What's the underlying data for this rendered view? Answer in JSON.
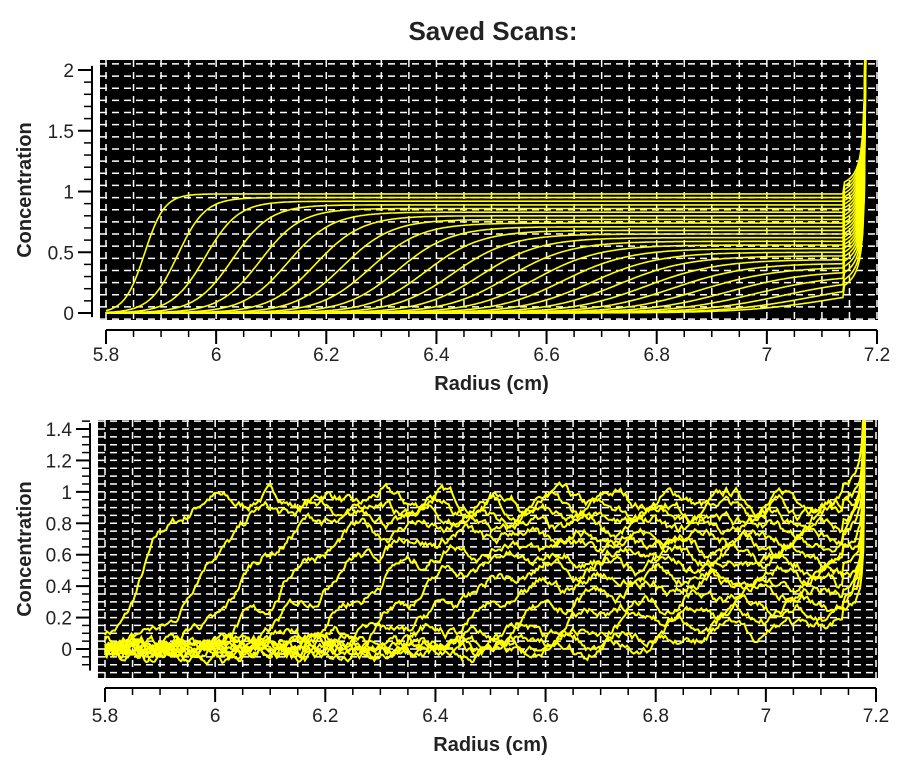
{
  "title": "Saved Scans:",
  "colors": {
    "background": "#000000",
    "trace": "#ffff00",
    "grid": "#ffffff"
  },
  "chart_data": [
    {
      "type": "line",
      "title": "Saved Scans:",
      "xlabel": "Radius (cm)",
      "ylabel": "Concentration",
      "xlim": [
        5.8,
        7.2
      ],
      "ylim": [
        -0.05,
        2.05
      ],
      "xticks": [
        "5.8",
        "6",
        "6.2",
        "6.4",
        "6.6",
        "6.8",
        "7",
        "7.2"
      ],
      "xtick_values": [
        5.8,
        6.0,
        6.2,
        6.4,
        6.6,
        6.8,
        7.0,
        7.2
      ],
      "yticks": [
        "0",
        "0.5",
        "1",
        "1.5",
        "2"
      ],
      "ytick_values": [
        0,
        0.5,
        1,
        1.5,
        2
      ],
      "grid": true,
      "meniscus_spike_x": 7.17,
      "series_model": "sigmoid boundary: plateau / (1 + exp(-(x - midpoint)/width))",
      "series": [
        {
          "midpoint": 5.87,
          "plateau": 0.98,
          "width": 0.018
        },
        {
          "midpoint": 5.93,
          "plateau": 0.95,
          "width": 0.025
        },
        {
          "midpoint": 5.98,
          "plateau": 0.92,
          "width": 0.03
        },
        {
          "midpoint": 6.03,
          "plateau": 0.89,
          "width": 0.034
        },
        {
          "midpoint": 6.08,
          "plateau": 0.86,
          "width": 0.037
        },
        {
          "midpoint": 6.13,
          "plateau": 0.83,
          "width": 0.04
        },
        {
          "midpoint": 6.18,
          "plateau": 0.8,
          "width": 0.042
        },
        {
          "midpoint": 6.23,
          "plateau": 0.77,
          "width": 0.044
        },
        {
          "midpoint": 6.28,
          "plateau": 0.74,
          "width": 0.046
        },
        {
          "midpoint": 6.33,
          "plateau": 0.71,
          "width": 0.048
        },
        {
          "midpoint": 6.38,
          "plateau": 0.68,
          "width": 0.05
        },
        {
          "midpoint": 6.43,
          "plateau": 0.65,
          "width": 0.052
        },
        {
          "midpoint": 6.48,
          "plateau": 0.62,
          "width": 0.054
        },
        {
          "midpoint": 6.53,
          "plateau": 0.59,
          "width": 0.056
        },
        {
          "midpoint": 6.58,
          "plateau": 0.56,
          "width": 0.058
        },
        {
          "midpoint": 6.63,
          "plateau": 0.53,
          "width": 0.06
        },
        {
          "midpoint": 6.68,
          "plateau": 0.5,
          "width": 0.062
        },
        {
          "midpoint": 6.73,
          "plateau": 0.47,
          "width": 0.064
        },
        {
          "midpoint": 6.78,
          "plateau": 0.44,
          "width": 0.066
        },
        {
          "midpoint": 6.83,
          "plateau": 0.41,
          "width": 0.068
        },
        {
          "midpoint": 6.88,
          "plateau": 0.38,
          "width": 0.07
        },
        {
          "midpoint": 6.93,
          "plateau": 0.35,
          "width": 0.072
        },
        {
          "midpoint": 6.98,
          "plateau": 0.32,
          "width": 0.074
        },
        {
          "midpoint": 7.03,
          "plateau": 0.29,
          "width": 0.076
        },
        {
          "midpoint": 7.08,
          "plateau": 0.26,
          "width": 0.078
        },
        {
          "midpoint": 7.12,
          "plateau": 0.23,
          "width": 0.08
        }
      ]
    },
    {
      "type": "line",
      "title": "",
      "xlabel": "Radius (cm)",
      "ylabel": "Concentration",
      "xlim": [
        5.8,
        7.2
      ],
      "ylim": [
        -0.15,
        1.45
      ],
      "xticks": [
        "5.8",
        "6",
        "6.2",
        "6.4",
        "6.6",
        "6.8",
        "7",
        "7.2"
      ],
      "xtick_values": [
        5.8,
        6.0,
        6.2,
        6.4,
        6.6,
        6.8,
        7.0,
        7.2
      ],
      "yticks": [
        "0",
        "0.2",
        "0.4",
        "0.6",
        "0.8",
        "1",
        "1.2",
        "1.4"
      ],
      "ytick_values": [
        0,
        0.2,
        0.4,
        0.6,
        0.8,
        1.0,
        1.2,
        1.4
      ],
      "grid": true,
      "meniscus_spike_x": 7.17,
      "noise_amplitude": 0.05,
      "series_model": "noisy sigmoid boundary",
      "series": [
        {
          "midpoint": 5.87,
          "plateau": 0.95,
          "width": 0.03
        },
        {
          "midpoint": 5.97,
          "plateau": 0.9,
          "width": 0.04
        },
        {
          "midpoint": 6.05,
          "plateau": 0.84,
          "width": 0.045
        },
        {
          "midpoint": 6.12,
          "plateau": 0.78,
          "width": 0.05
        },
        {
          "midpoint": 6.18,
          "plateau": 0.72,
          "width": 0.055
        },
        {
          "midpoint": 6.26,
          "plateau": 0.66,
          "width": 0.06
        },
        {
          "midpoint": 6.34,
          "plateau": 0.6,
          "width": 0.065
        },
        {
          "midpoint": 6.42,
          "plateau": 0.54,
          "width": 0.07
        },
        {
          "midpoint": 6.5,
          "plateau": 0.48,
          "width": 0.075
        },
        {
          "midpoint": 6.58,
          "plateau": 0.42,
          "width": 0.08
        },
        {
          "midpoint": 6.66,
          "plateau": 0.36,
          "width": 0.085
        },
        {
          "midpoint": 6.74,
          "plateau": 0.3,
          "width": 0.09
        },
        {
          "midpoint": 6.82,
          "plateau": 0.24,
          "width": 0.095
        },
        {
          "midpoint": 6.9,
          "plateau": 0.18,
          "width": 0.1
        }
      ]
    }
  ]
}
